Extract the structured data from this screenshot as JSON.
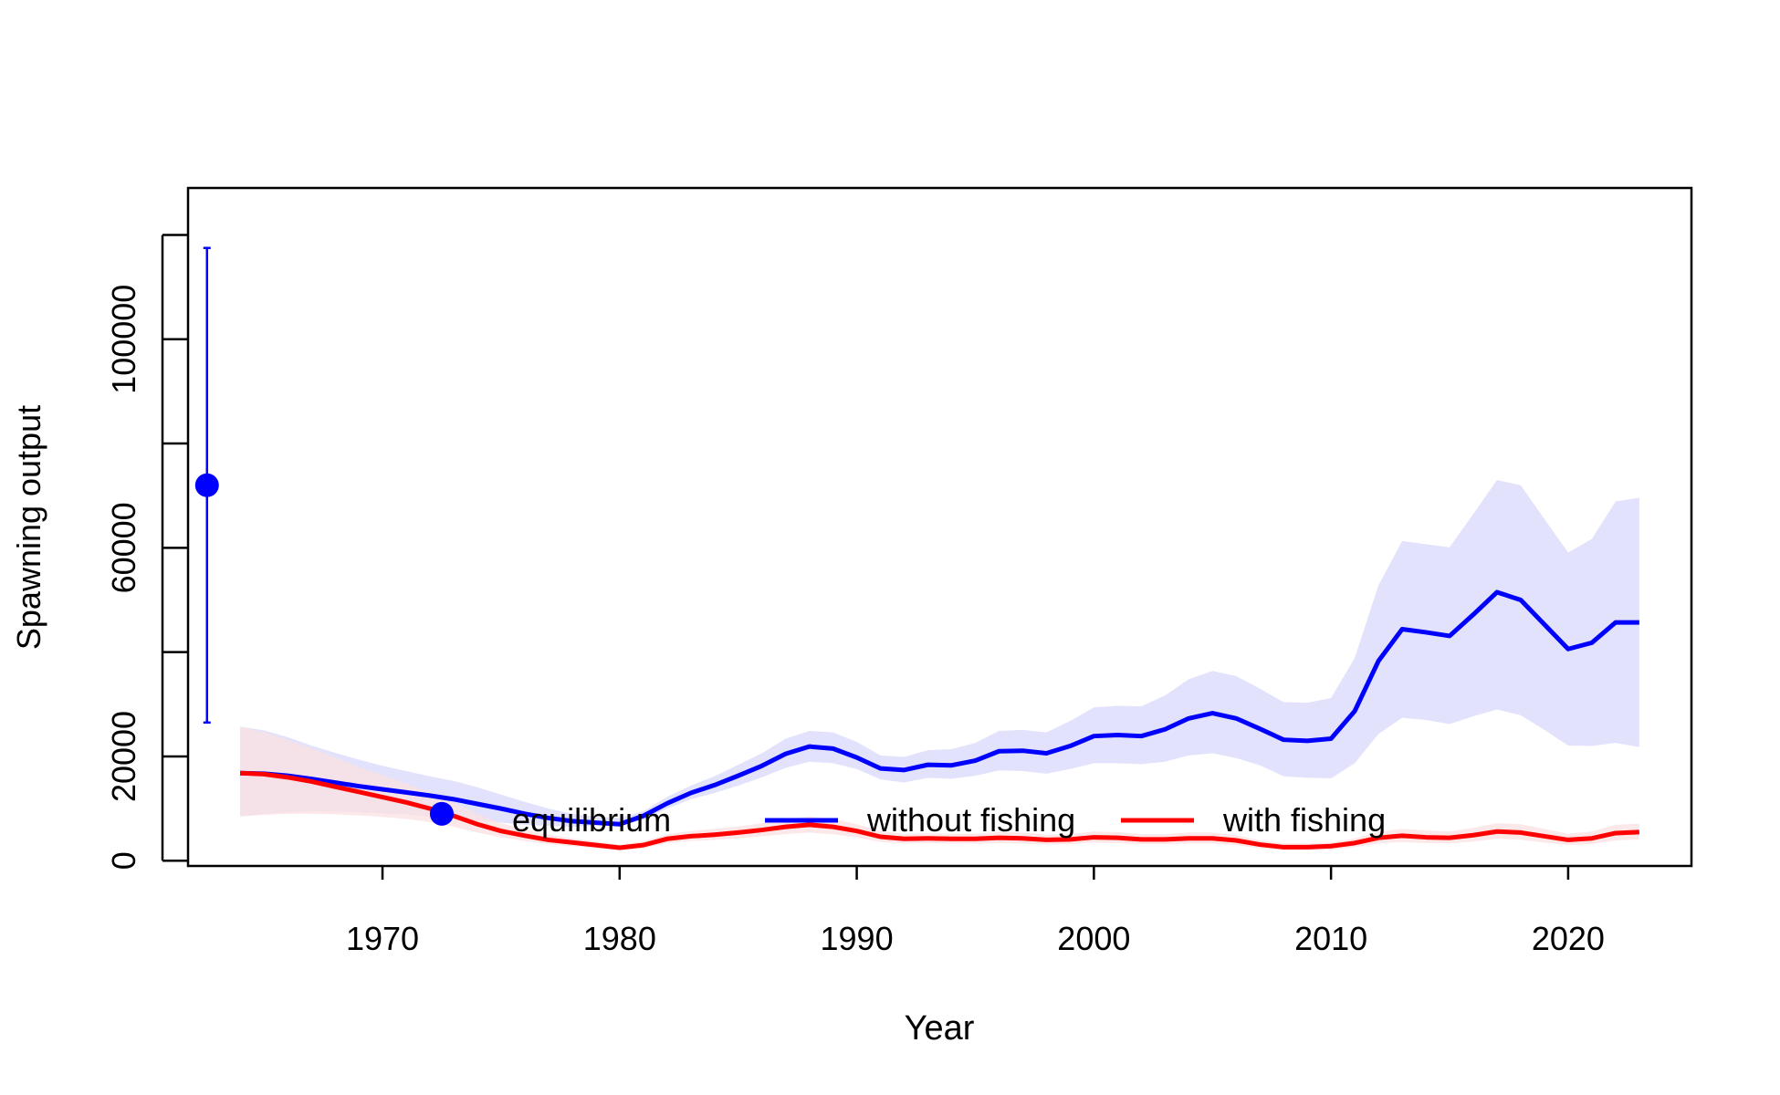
{
  "chart_data": {
    "type": "line",
    "title": "",
    "xlabel": "Year",
    "ylabel": "Spawning output",
    "xlim": [
      1961.8,
      2025.2
    ],
    "ylim": [
      -1000,
      129000
    ],
    "xticks": [
      1970,
      1980,
      1990,
      2000,
      2010,
      2020
    ],
    "yticks": [
      0,
      20000,
      60000,
      100000
    ],
    "ytick_marks": [
      0,
      20000,
      40000,
      60000,
      80000,
      100000,
      120000
    ],
    "grid": false,
    "legend": {
      "position": "bottom",
      "entries": [
        {
          "label": "equilibrium",
          "marker": "point",
          "color": "#0000ff"
        },
        {
          "label": "without fishing",
          "marker": "line",
          "color": "#0000ff"
        },
        {
          "label": "with fishing",
          "marker": "line",
          "color": "#ff0000"
        }
      ]
    },
    "equilibrium": {
      "x": 1962.6,
      "value": 72000,
      "lower": 26500,
      "upper": 117500,
      "color": "#0000ff"
    },
    "extra_point": {
      "x": 1972.5,
      "value": 9000,
      "color": "#0000ff"
    },
    "series": [
      {
        "name": "without fishing",
        "color": "#0000ff",
        "band_color": "#e2e2fc",
        "x": [
          1964,
          1965,
          1966,
          1967,
          1968,
          1969,
          1970,
          1971,
          1972,
          1973,
          1974,
          1975,
          1976,
          1977,
          1978,
          1979,
          1980,
          1981,
          1982,
          1983,
          1984,
          1985,
          1986,
          1987,
          1988,
          1989,
          1990,
          1991,
          1992,
          1993,
          1994,
          1995,
          1996,
          1997,
          1998,
          1999,
          2000,
          2001,
          2002,
          2003,
          2004,
          2005,
          2006,
          2007,
          2008,
          2009,
          2010,
          2011,
          2012,
          2013,
          2014,
          2015,
          2016,
          2017,
          2018,
          2019,
          2020,
          2021,
          2022,
          2023
        ],
        "values": [
          16800,
          16700,
          16300,
          15700,
          15000,
          14300,
          13700,
          13100,
          12500,
          11800,
          10900,
          10000,
          9000,
          8200,
          7600,
          7300,
          7000,
          8600,
          11000,
          13000,
          14500,
          16300,
          18200,
          20500,
          21900,
          21500,
          19800,
          17700,
          17400,
          18400,
          18300,
          19200,
          21000,
          21100,
          20600,
          22000,
          23900,
          24100,
          23900,
          25200,
          27300,
          28300,
          27300,
          25300,
          23200,
          23000,
          23400,
          28700,
          38300,
          44400,
          43800,
          43100,
          47200,
          51500,
          50000,
          45300,
          40600,
          41800,
          45700,
          45700
        ],
        "lower": [
          8500,
          9000,
          9300,
          9500,
          9400,
          9300,
          9100,
          8900,
          8500,
          8100,
          7700,
          7300,
          6900,
          6700,
          6500,
          6700,
          6800,
          7800,
          10000,
          11800,
          13000,
          14400,
          16000,
          17800,
          19000,
          18700,
          17600,
          15600,
          15000,
          15900,
          15700,
          16300,
          17300,
          17200,
          16700,
          17600,
          18700,
          18700,
          18500,
          19000,
          20200,
          20600,
          19700,
          18300,
          16200,
          15900,
          15800,
          18700,
          24300,
          27400,
          27000,
          26200,
          27700,
          29000,
          27900,
          25100,
          22100,
          22000,
          22600,
          21800
        ],
        "upper": [
          25700,
          25000,
          23700,
          22100,
          20700,
          19400,
          18200,
          17200,
          16200,
          15300,
          14100,
          12700,
          11300,
          10000,
          9000,
          8400,
          8200,
          9500,
          12200,
          14400,
          16200,
          18400,
          20600,
          23400,
          24900,
          24600,
          22800,
          20200,
          19900,
          21200,
          21400,
          22600,
          24900,
          25100,
          24600,
          26800,
          29400,
          29700,
          29600,
          31700,
          34800,
          36400,
          35400,
          33000,
          30400,
          30300,
          31200,
          38900,
          52800,
          61300,
          60700,
          60100,
          66500,
          73000,
          72000,
          65500,
          59100,
          61700,
          68900,
          69600
        ]
      },
      {
        "name": "with fishing",
        "color": "#ff0000",
        "band_color": "#fbe0e2",
        "x": [
          1964,
          1965,
          1966,
          1967,
          1968,
          1969,
          1970,
          1971,
          1972,
          1973,
          1974,
          1975,
          1976,
          1977,
          1978,
          1979,
          1980,
          1981,
          1982,
          1983,
          1984,
          1985,
          1986,
          1987,
          1988,
          1989,
          1990,
          1991,
          1992,
          1993,
          1994,
          1995,
          1996,
          1997,
          1998,
          1999,
          2000,
          2001,
          2002,
          2003,
          2004,
          2005,
          2006,
          2007,
          2008,
          2009,
          2010,
          2011,
          2012,
          2013,
          2014,
          2015,
          2016,
          2017,
          2018,
          2019,
          2020,
          2021,
          2022,
          2023
        ],
        "values": [
          16800,
          16600,
          16000,
          15200,
          14200,
          13200,
          12200,
          11200,
          10000,
          8600,
          7000,
          5700,
          4800,
          4000,
          3500,
          3000,
          2500,
          3000,
          4200,
          4700,
          5000,
          5400,
          5900,
          6500,
          6900,
          6500,
          5700,
          4600,
          4200,
          4300,
          4200,
          4200,
          4400,
          4300,
          4000,
          4100,
          4500,
          4400,
          4100,
          4100,
          4300,
          4300,
          3900,
          3100,
          2600,
          2600,
          2800,
          3400,
          4400,
          4800,
          4500,
          4400,
          4900,
          5600,
          5400,
          4700,
          4000,
          4300,
          5300,
          5500
        ],
        "lower": [
          8500,
          8800,
          9000,
          9000,
          8900,
          8700,
          8400,
          8000,
          7400,
          6500,
          5400,
          4500,
          3800,
          3200,
          2800,
          2400,
          2000,
          2400,
          3400,
          3800,
          4000,
          4300,
          4700,
          5100,
          5400,
          5100,
          4500,
          3600,
          3300,
          3400,
          3300,
          3300,
          3400,
          3300,
          3100,
          3200,
          3500,
          3400,
          3200,
          3200,
          3300,
          3300,
          3000,
          2400,
          2000,
          2000,
          2100,
          2600,
          3300,
          3600,
          3400,
          3300,
          3700,
          4200,
          4000,
          3500,
          3000,
          3200,
          3900,
          4100
        ],
        "upper": [
          25700,
          24700,
          23200,
          21600,
          19800,
          18000,
          16400,
          14800,
          13100,
          11100,
          9000,
          7200,
          6000,
          5000,
          4300,
          3700,
          3100,
          3700,
          5100,
          5700,
          6100,
          6600,
          7200,
          8000,
          8500,
          8000,
          7000,
          5700,
          5200,
          5300,
          5200,
          5200,
          5500,
          5400,
          5000,
          5100,
          5600,
          5500,
          5100,
          5100,
          5400,
          5400,
          4900,
          3900,
          3300,
          3300,
          3500,
          4300,
          5600,
          6100,
          5800,
          5600,
          6300,
          7200,
          7000,
          6100,
          5200,
          5600,
          6900,
          7100
        ]
      }
    ]
  }
}
